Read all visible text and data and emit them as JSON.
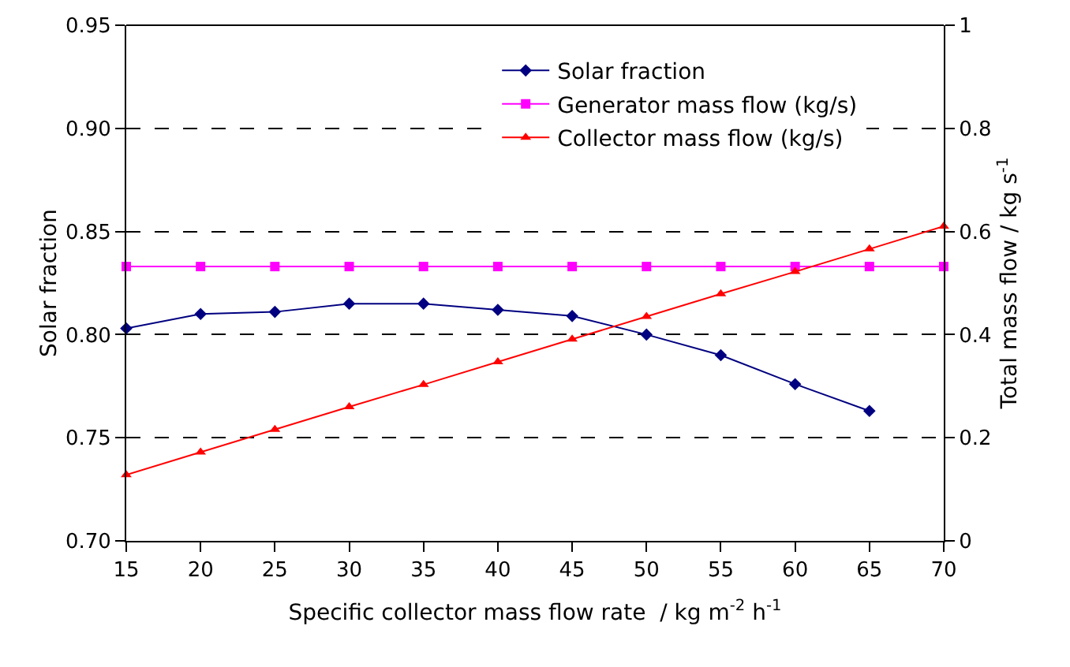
{
  "chart_data": {
    "type": "line",
    "xlabel": "Specific collector mass flow rate  / kg m$^{-2}$ h$^{-1}$",
    "ylabel": "Solar fraction",
    "y2label": "Total mass flow / kg s$^{-1}$",
    "x": [
      15,
      20,
      25,
      30,
      35,
      40,
      45,
      50,
      55,
      60,
      65,
      70
    ],
    "series": [
      {
        "name": "Solar fraction",
        "color": "#000080",
        "marker": "diamond",
        "values": [
          0.803,
          0.81,
          0.811,
          0.815,
          0.815,
          0.812,
          0.809,
          0.8,
          0.79,
          0.776,
          0.763,
          null
        ]
      },
      {
        "name": "Generator mass flow (kg/s)",
        "color": "#ff00ff",
        "marker": "square",
        "axis": "y2",
        "values": [
          0.532,
          0.532,
          0.532,
          0.532,
          0.532,
          0.532,
          0.532,
          0.532,
          0.532,
          0.532,
          0.532,
          0.532
        ]
      },
      {
        "name": "Collector mass flow (kg/s)",
        "color": "#ff0000",
        "marker": "triangle",
        "axis": "y2",
        "values": [
          0.128,
          0.172,
          0.216,
          0.26,
          0.303,
          0.347,
          0.391,
          0.435,
          0.479,
          0.522,
          0.566,
          0.61
        ]
      }
    ],
    "xlim": [
      15,
      70
    ],
    "xticks": [
      15,
      20,
      25,
      30,
      35,
      40,
      45,
      50,
      55,
      60,
      65,
      70
    ],
    "ylim": [
      0.7,
      0.95
    ],
    "yticks": [
      {
        "value": 0.7,
        "label": "0.70"
      },
      {
        "value": 0.75,
        "label": "0.75"
      },
      {
        "value": 0.8,
        "label": "0.80"
      },
      {
        "value": 0.85,
        "label": "0.85"
      },
      {
        "value": 0.9,
        "label": "0.90"
      },
      {
        "value": 0.95,
        "label": "0.95"
      }
    ],
    "y2lim": [
      0,
      1
    ],
    "y2ticks": [
      0,
      0.2,
      0.4,
      0.6,
      0.8,
      1
    ],
    "grid": "y",
    "legend": "top",
    "line_style": "solid"
  }
}
